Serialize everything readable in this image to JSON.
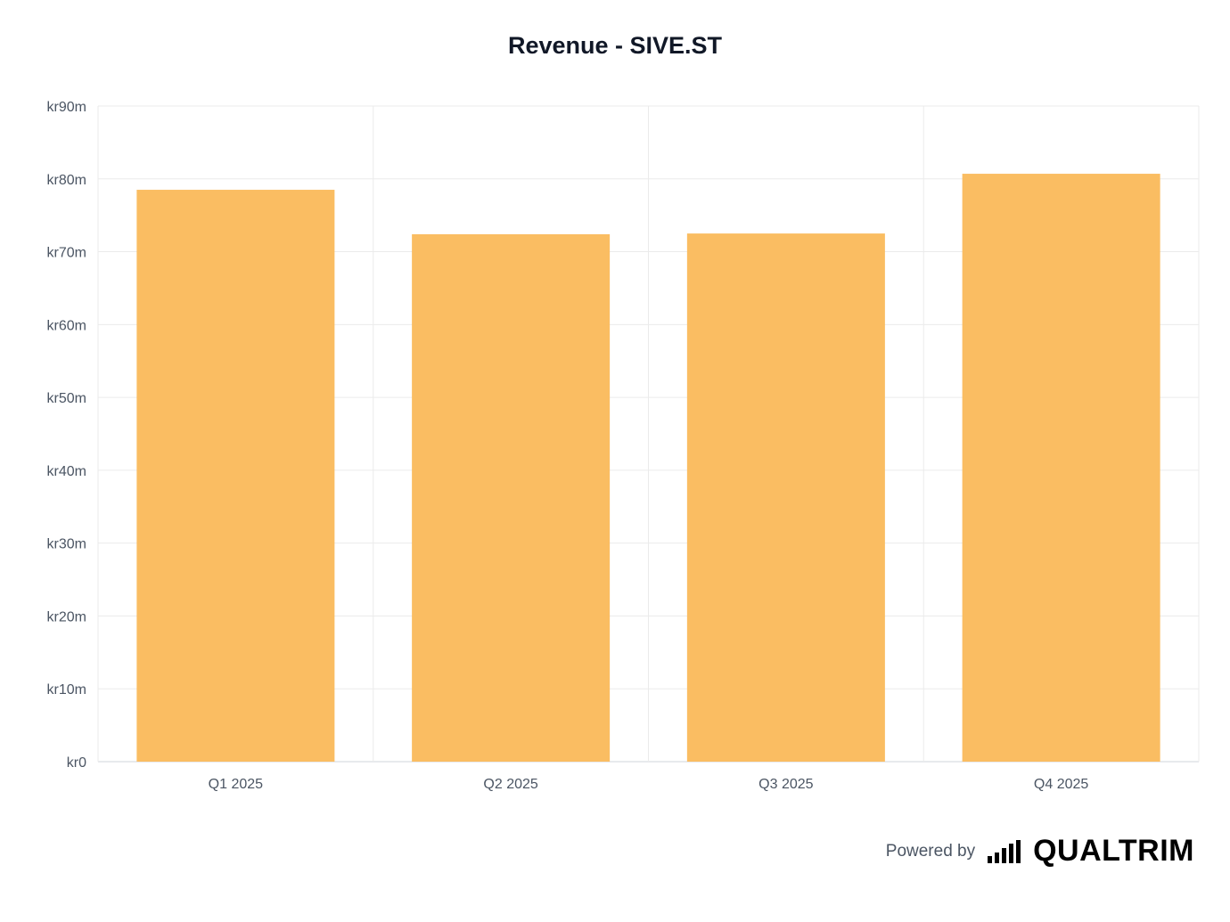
{
  "chart_data": {
    "type": "bar",
    "title": "Revenue - SIVE.ST",
    "categories": [
      "Q1 2025",
      "Q2 2025",
      "Q3 2025",
      "Q4 2025"
    ],
    "values": [
      78.5,
      72.4,
      72.5,
      80.7
    ],
    "unit": "kr millions",
    "ylim": [
      0,
      90
    ],
    "yticks": [
      0,
      10,
      20,
      30,
      40,
      50,
      60,
      70,
      80,
      90
    ],
    "ytick_labels": [
      "kr0",
      "kr10m",
      "kr20m",
      "kr30m",
      "kr40m",
      "kr50m",
      "kr60m",
      "kr70m",
      "kr80m",
      "kr90m"
    ],
    "xlabel": "",
    "ylabel": "",
    "grid": true,
    "bar_color": "#FABD62"
  },
  "footer": {
    "powered_by": "Powered by",
    "brand": "QUALTRIM",
    "brand_icon": "signal-bars-icon"
  }
}
